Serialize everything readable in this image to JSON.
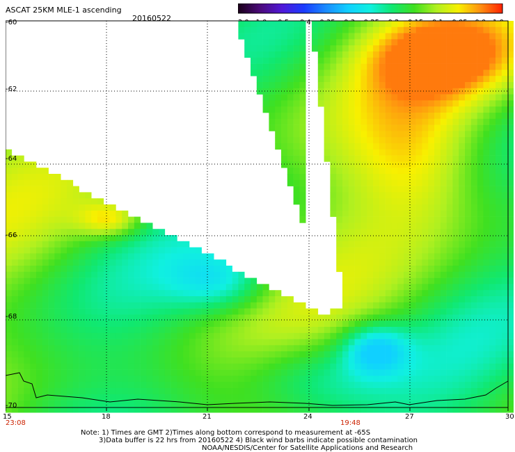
{
  "header": {
    "title": "ASCAT 25KM MLE-1 ascending",
    "date": "20160522"
  },
  "colorbar": {
    "labels": [
      "-3.0",
      "-1.0",
      "-0.5",
      "-0.4",
      "-0.35",
      "-0.3",
      "-0.25",
      "-0.2",
      "-0.15",
      "-0.1",
      "-0.05",
      "0.0",
      "1.0"
    ],
    "colors": [
      "#1a0018",
      "#4b0a7a",
      "#5018d8",
      "#1a3cff",
      "#1a8cff",
      "#10d0ff",
      "#10f0e0",
      "#10e870",
      "#40e020",
      "#b0f020",
      "#f8f000",
      "#ff9010",
      "#ff2000"
    ]
  },
  "axes": {
    "y_ticks": [
      "-60",
      "-62",
      "-64",
      "-66",
      "-68",
      "-70"
    ],
    "x_ticks": [
      "15",
      "18",
      "21",
      "24",
      "27",
      "30"
    ],
    "time_marks": [
      "23:08",
      "19:48"
    ]
  },
  "notes": {
    "line1": "Note: 1) Times are GMT 2)Times along bottom correspond to measurement at -65S",
    "line2": "3)Data buffer is 22 hrs from 20160522 4) Black wind barbs indicate possible contamination",
    "line3": "NOAA/NESDIS/Center for Satellite Applications and Research"
  }
}
